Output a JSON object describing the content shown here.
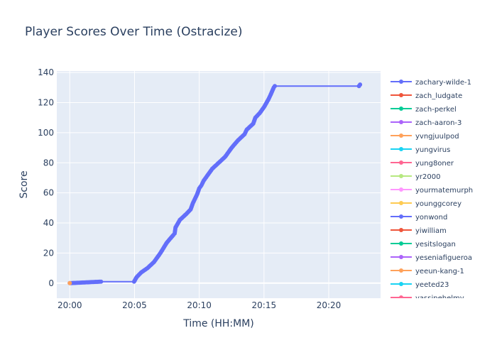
{
  "chart_data": {
    "type": "line",
    "title": "Player Scores Over Time (Ostracize)",
    "xlabel": "Time (HH:MM)",
    "ylabel": "Score",
    "x_tick_labels": [
      "20:00",
      "20:05",
      "20:10",
      "20:15",
      "20:20"
    ],
    "y_ticks": [
      0,
      20,
      40,
      60,
      80,
      100,
      120,
      140
    ],
    "xlim": [
      "19:59:00",
      "20:24:00"
    ],
    "ylim": [
      -10,
      141
    ],
    "grid": true,
    "legend_position": "right",
    "legend": [
      {
        "name": "zachary-wilde-1",
        "color": "#636efa"
      },
      {
        "name": "zach_ludgate",
        "color": "#EF553B"
      },
      {
        "name": "zach-perkel",
        "color": "#00cc96"
      },
      {
        "name": "zach-aaron-3",
        "color": "#ab63fa"
      },
      {
        "name": "yvngjuulpod",
        "color": "#FFA15A"
      },
      {
        "name": "yungvirus",
        "color": "#19d3f3"
      },
      {
        "name": "yung8oner",
        "color": "#FF6692"
      },
      {
        "name": "yr2000",
        "color": "#B6E880"
      },
      {
        "name": "yourmatemurph",
        "color": "#FF97FF"
      },
      {
        "name": "younggcorey",
        "color": "#FECB52"
      },
      {
        "name": "yonwond",
        "color": "#636efa"
      },
      {
        "name": "yiwilliam",
        "color": "#EF553B"
      },
      {
        "name": "yesitslogan",
        "color": "#00cc96"
      },
      {
        "name": "yeseniafigueroa",
        "color": "#ab63fa"
      },
      {
        "name": "yeeun-kang-1",
        "color": "#FFA15A"
      },
      {
        "name": "yeeted23",
        "color": "#19d3f3"
      },
      {
        "name": "yassinehelmy",
        "color": "#FF6692"
      }
    ],
    "series": [
      {
        "name": "zachary-wilde-1",
        "color": "#636efa",
        "points": [
          [
            "20:00:00",
            0
          ],
          [
            "20:02:25",
            1
          ],
          [
            "20:04:58",
            1
          ],
          [
            "20:05:10",
            4
          ],
          [
            "20:05:30",
            7
          ],
          [
            "20:06:00",
            10
          ],
          [
            "20:06:30",
            14
          ],
          [
            "20:07:00",
            20
          ],
          [
            "20:07:30",
            27
          ],
          [
            "20:08:00",
            32
          ],
          [
            "20:08:06",
            33
          ],
          [
            "20:08:10",
            37
          ],
          [
            "20:08:30",
            42
          ],
          [
            "20:09:00",
            46
          ],
          [
            "20:09:20",
            49
          ],
          [
            "20:09:30",
            53
          ],
          [
            "20:09:50",
            59
          ],
          [
            "20:10:00",
            63
          ],
          [
            "20:10:10",
            65
          ],
          [
            "20:10:20",
            68
          ],
          [
            "20:10:40",
            72
          ],
          [
            "20:11:00",
            76
          ],
          [
            "20:11:30",
            80
          ],
          [
            "20:12:00",
            84
          ],
          [
            "20:12:30",
            90
          ],
          [
            "20:13:00",
            95
          ],
          [
            "20:13:30",
            99
          ],
          [
            "20:13:40",
            102
          ],
          [
            "20:14:10",
            106
          ],
          [
            "20:14:20",
            110
          ],
          [
            "20:14:40",
            113
          ],
          [
            "20:15:00",
            117
          ],
          [
            "20:15:20",
            122
          ],
          [
            "20:15:30",
            125
          ],
          [
            "20:15:45",
            130
          ],
          [
            "20:15:50",
            131
          ],
          [
            "20:22:20",
            131
          ],
          [
            "20:22:25",
            132
          ]
        ]
      },
      {
        "name": "yvngjuulpod",
        "color": "#FFA15A",
        "points": [
          [
            "20:00:00",
            0
          ]
        ]
      }
    ]
  }
}
